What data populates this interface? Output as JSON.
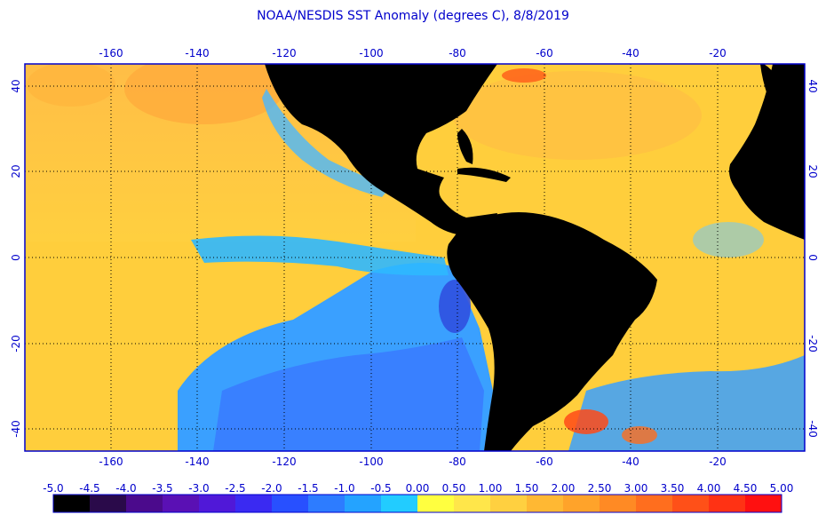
{
  "title": "NOAA/NESDIS SST Anomaly (degrees C), 8/8/2019",
  "map": {
    "lon_min": -180,
    "lon_max": 0,
    "lat_min": -45,
    "lat_max": 45,
    "lon_ticks": [
      -160,
      -140,
      -120,
      -100,
      -80,
      -60,
      -40,
      -20
    ],
    "lat_ticks": [
      40,
      20,
      0,
      -20,
      -40
    ],
    "gridlines": "dotted",
    "land_color": "#000000",
    "frame_color": "#0000cc"
  },
  "colorbar": {
    "labels": [
      "-5.0",
      "-4.5",
      "-4.0",
      "-3.5",
      "-3.0",
      "-2.5",
      "-2.0",
      "-1.5",
      "-1.0",
      "-0.5",
      "0.00",
      "0.50",
      "1.00",
      "1.50",
      "2.00",
      "2.50",
      "3.00",
      "3.50",
      "4.00",
      "4.50",
      "5.00"
    ],
    "colors": [
      "#000000",
      "#2a0a4a",
      "#4b0a8c",
      "#5a10b4",
      "#5018d8",
      "#3a2af2",
      "#2850ff",
      "#2d7cff",
      "#24a3ff",
      "#22ccff",
      "#ffff40",
      "#ffe64a",
      "#ffd040",
      "#ffb833",
      "#ffa32a",
      "#ff8a24",
      "#ff6e1e",
      "#ff5018",
      "#ff3214",
      "#ff1010"
    ]
  }
}
